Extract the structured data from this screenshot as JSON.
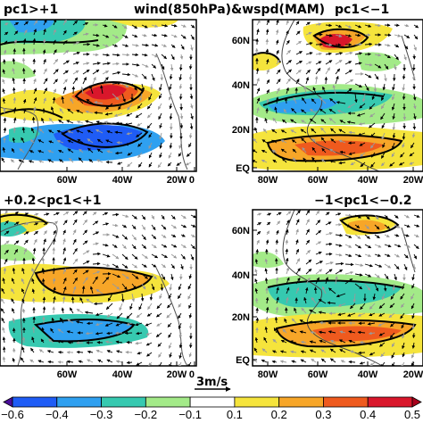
{
  "figure": {
    "main_title": "wind(850hPa)&wspd(MAM)",
    "reference_vector_label": "3m/s"
  },
  "panels": [
    {
      "title": "pc1>+1",
      "x_ticks": [
        "60W",
        "40W",
        "20W",
        "0"
      ],
      "y_ticks": []
    },
    {
      "title": "pc1<−1",
      "x_ticks": [
        "80W",
        "60W",
        "40W",
        "20W"
      ],
      "y_ticks": [
        "60N",
        "40N",
        "20N",
        "EQ"
      ]
    },
    {
      "title": "+0.2<pc1<+1",
      "x_ticks": [
        "60W",
        "40W",
        "20W",
        "0"
      ],
      "y_ticks": []
    },
    {
      "title": "−1<pc1<−0.2",
      "x_ticks": [
        "80W",
        "60W",
        "40W",
        "20W"
      ],
      "y_ticks": [
        "60N",
        "40N",
        "20N",
        "EQ"
      ]
    }
  ],
  "colorbar": {
    "labels": [
      "−0.6",
      "−0.4",
      "−0.3",
      "−0.2",
      "−0.1",
      "0.1",
      "0.2",
      "0.3",
      "0.4",
      "0.5"
    ],
    "colors": [
      "#4a0d9a",
      "#1f5cf5",
      "#2fa0f0",
      "#36c9b0",
      "#a3ea88",
      "#ffffff",
      "#f5e43c",
      "#f7a628",
      "#ef5a1e",
      "#d9172b",
      "#a8001b"
    ]
  },
  "chart_data": {
    "type": "heatmap",
    "variable": "wind(850hPa)&wspd(MAM)",
    "panels": [
      "pc1>+1",
      "pc1<−1",
      "+0.2<pc1<+1",
      "−1<pc1<−0.2"
    ],
    "color_levels": [
      -0.6,
      -0.4,
      -0.3,
      -0.2,
      -0.1,
      0.1,
      0.2,
      0.3,
      0.4,
      0.5
    ],
    "reference_vector": "3m/s"
  }
}
